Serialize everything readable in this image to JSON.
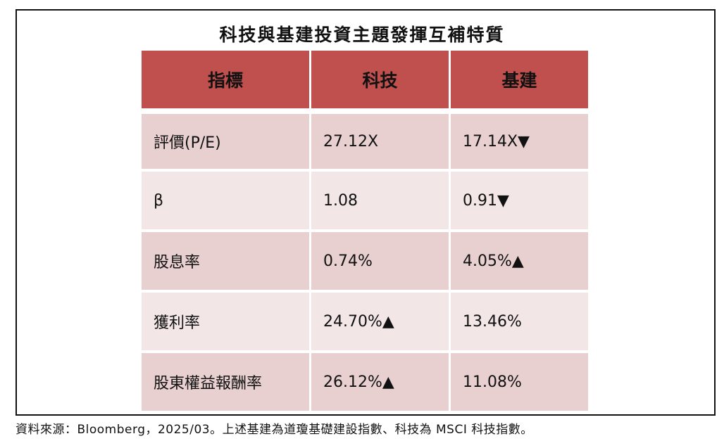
{
  "title": "科技與基建投資主題發揮互補特質",
  "headers": [
    "指標",
    "科技",
    "基建"
  ],
  "rows": [
    [
      "評價(P/E)",
      "27.12X",
      "17.14X▼"
    ],
    [
      "β",
      "1.08",
      "0.91▼"
    ],
    [
      "股息率",
      "0.74%",
      "4.05%▲"
    ],
    [
      "獲利率",
      "24.70%▲",
      "13.46%"
    ],
    [
      "股東權益報酬率",
      "26.12%▲",
      "11.08%"
    ]
  ],
  "colors": {
    "header": "#c0504d",
    "row_odd": "#e8cfd0",
    "row_even": "#f2e6e6"
  },
  "footnote": "資料來源：Bloomberg，2025/03。上述基建為道瓊基礎建設指數、科技為 MSCI 科技指數。"
}
